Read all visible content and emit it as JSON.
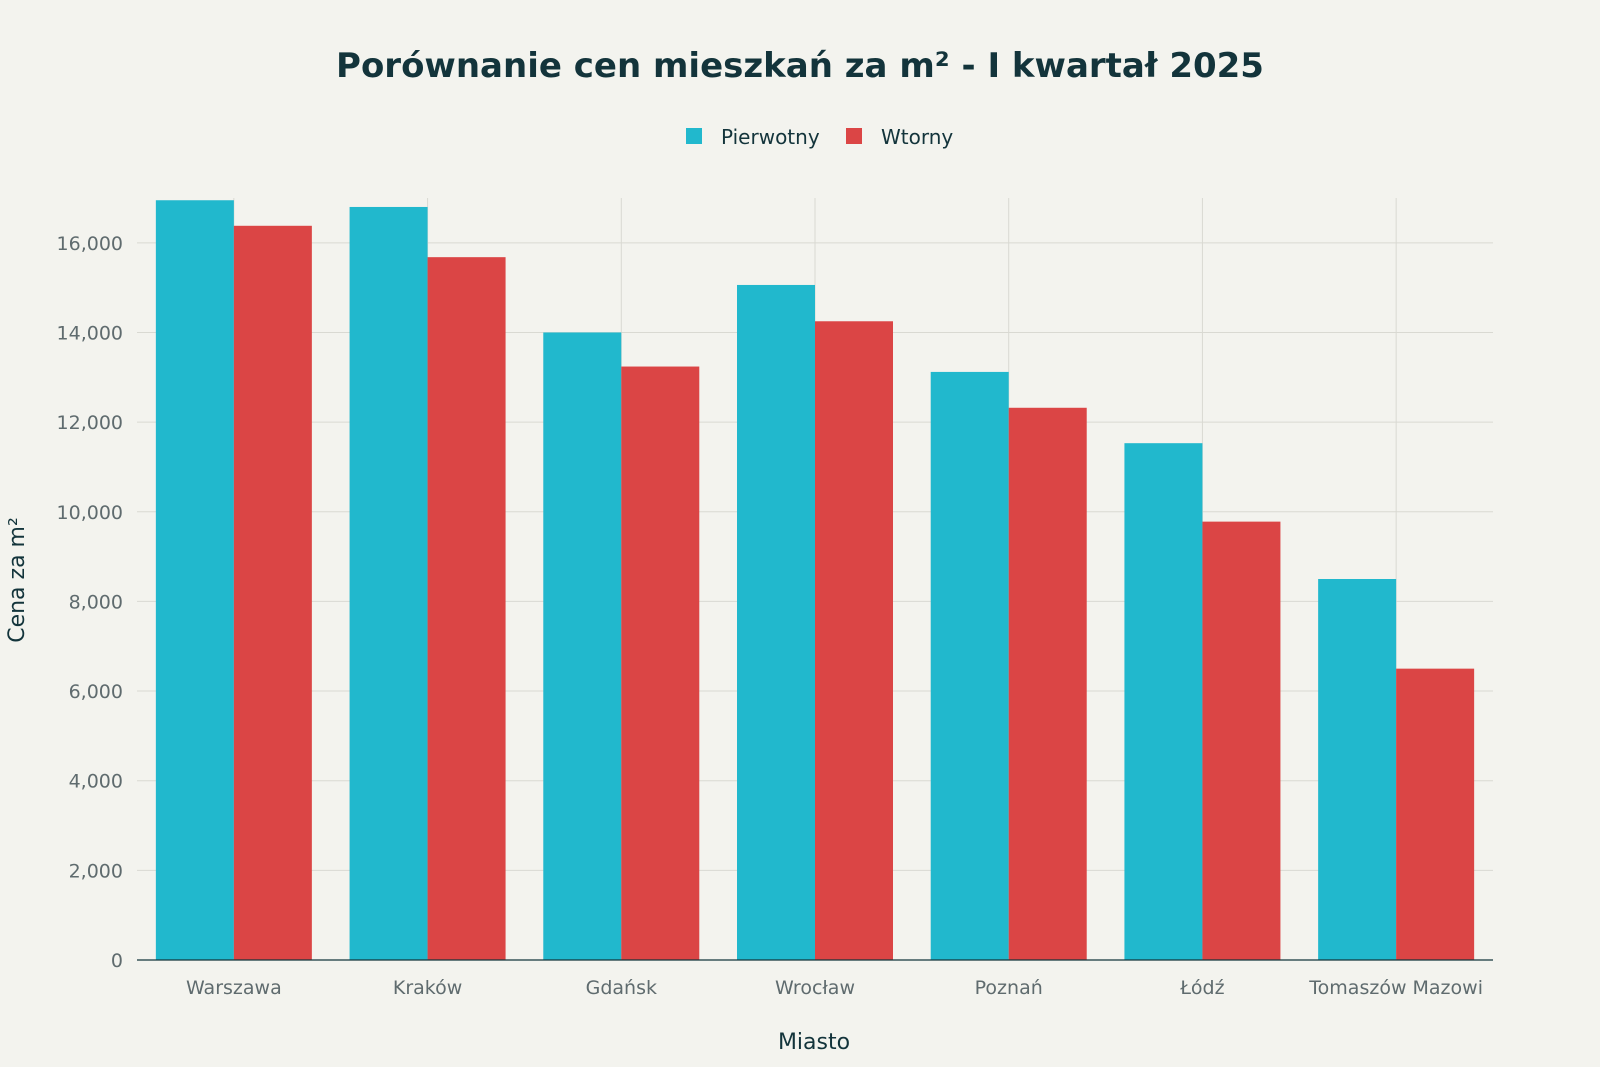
{
  "chart_data": {
    "type": "bar",
    "title": "Porównanie cen mieszkań za m² - I kwartał 2025",
    "xlabel": "Miasto",
    "ylabel": "Cena za m²",
    "categories": [
      "Warszawa",
      "Kraków",
      "Gdańsk",
      "Wrocław",
      "Poznań",
      "Łódź",
      "Tomaszów Mazowi"
    ],
    "series": [
      {
        "name": "Pierwotny",
        "color": "#21b8cd",
        "values": [
          16950,
          16800,
          14000,
          15060,
          13120,
          11530,
          8500
        ]
      },
      {
        "name": "Wtorny",
        "color": "#db4545",
        "values": [
          16380,
          15680,
          13240,
          14250,
          12320,
          9780,
          6500
        ]
      }
    ],
    "ylim": [
      0,
      17000
    ],
    "yticks": [
      0,
      2000,
      4000,
      6000,
      8000,
      10000,
      12000,
      14000,
      16000
    ],
    "ytick_labels": [
      "0",
      "2,000",
      "4,000",
      "6,000",
      "8,000",
      "10,000",
      "12,000",
      "14,000",
      "16,000"
    ],
    "grid": true,
    "legend_position": "top-center"
  }
}
